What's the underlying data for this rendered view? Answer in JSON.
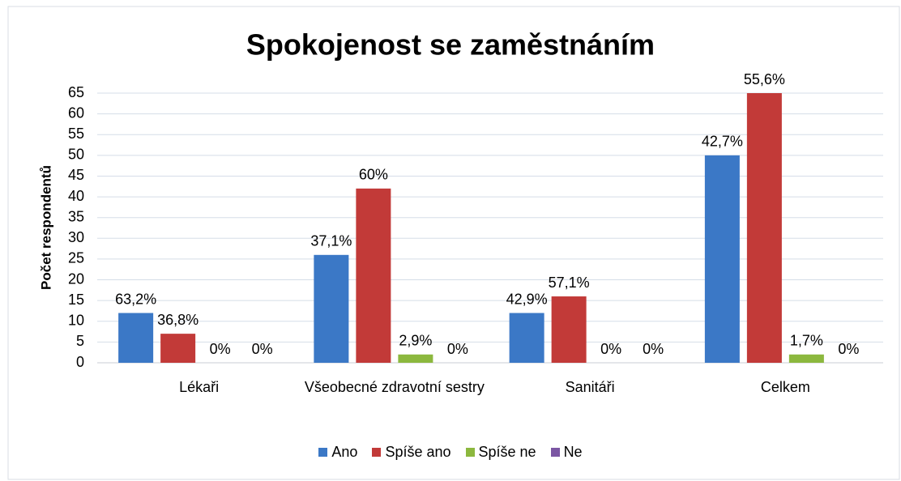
{
  "chart_data": {
    "type": "bar",
    "title": "Spokojenost se zaměstnáním",
    "y_label": "Počet respondentů",
    "categories": [
      "Lékaři",
      "Všeobecné zdravotní sestry",
      "Sanitáři",
      "Celkem"
    ],
    "series": [
      {
        "name": "Ano",
        "color": "#3b78c6",
        "values": [
          12,
          26,
          12,
          50
        ],
        "percent_labels": [
          "63,2%",
          "37,1%",
          "42,9%",
          "42,7%"
        ]
      },
      {
        "name": "Spíše ano",
        "color": "#c23a38",
        "values": [
          7,
          42,
          16,
          65
        ],
        "percent_labels": [
          "36,8%",
          "60%",
          "57,1%",
          "55,6%"
        ]
      },
      {
        "name": "Spíše ne",
        "color": "#8cb83e",
        "values": [
          0,
          2,
          0,
          2
        ],
        "percent_labels": [
          "0%",
          "2,9%",
          "0%",
          "1,7%"
        ]
      },
      {
        "name": "Ne",
        "color": "#7b56a3",
        "values": [
          0,
          0,
          0,
          0
        ],
        "percent_labels": [
          "0%",
          "0%",
          "0%",
          "0%"
        ]
      }
    ],
    "ylim": [
      0,
      65
    ],
    "yticks": [
      0,
      5,
      10,
      15,
      20,
      25,
      30,
      35,
      40,
      45,
      50,
      55,
      60,
      65
    ],
    "grid": true,
    "legend": "bottom"
  }
}
